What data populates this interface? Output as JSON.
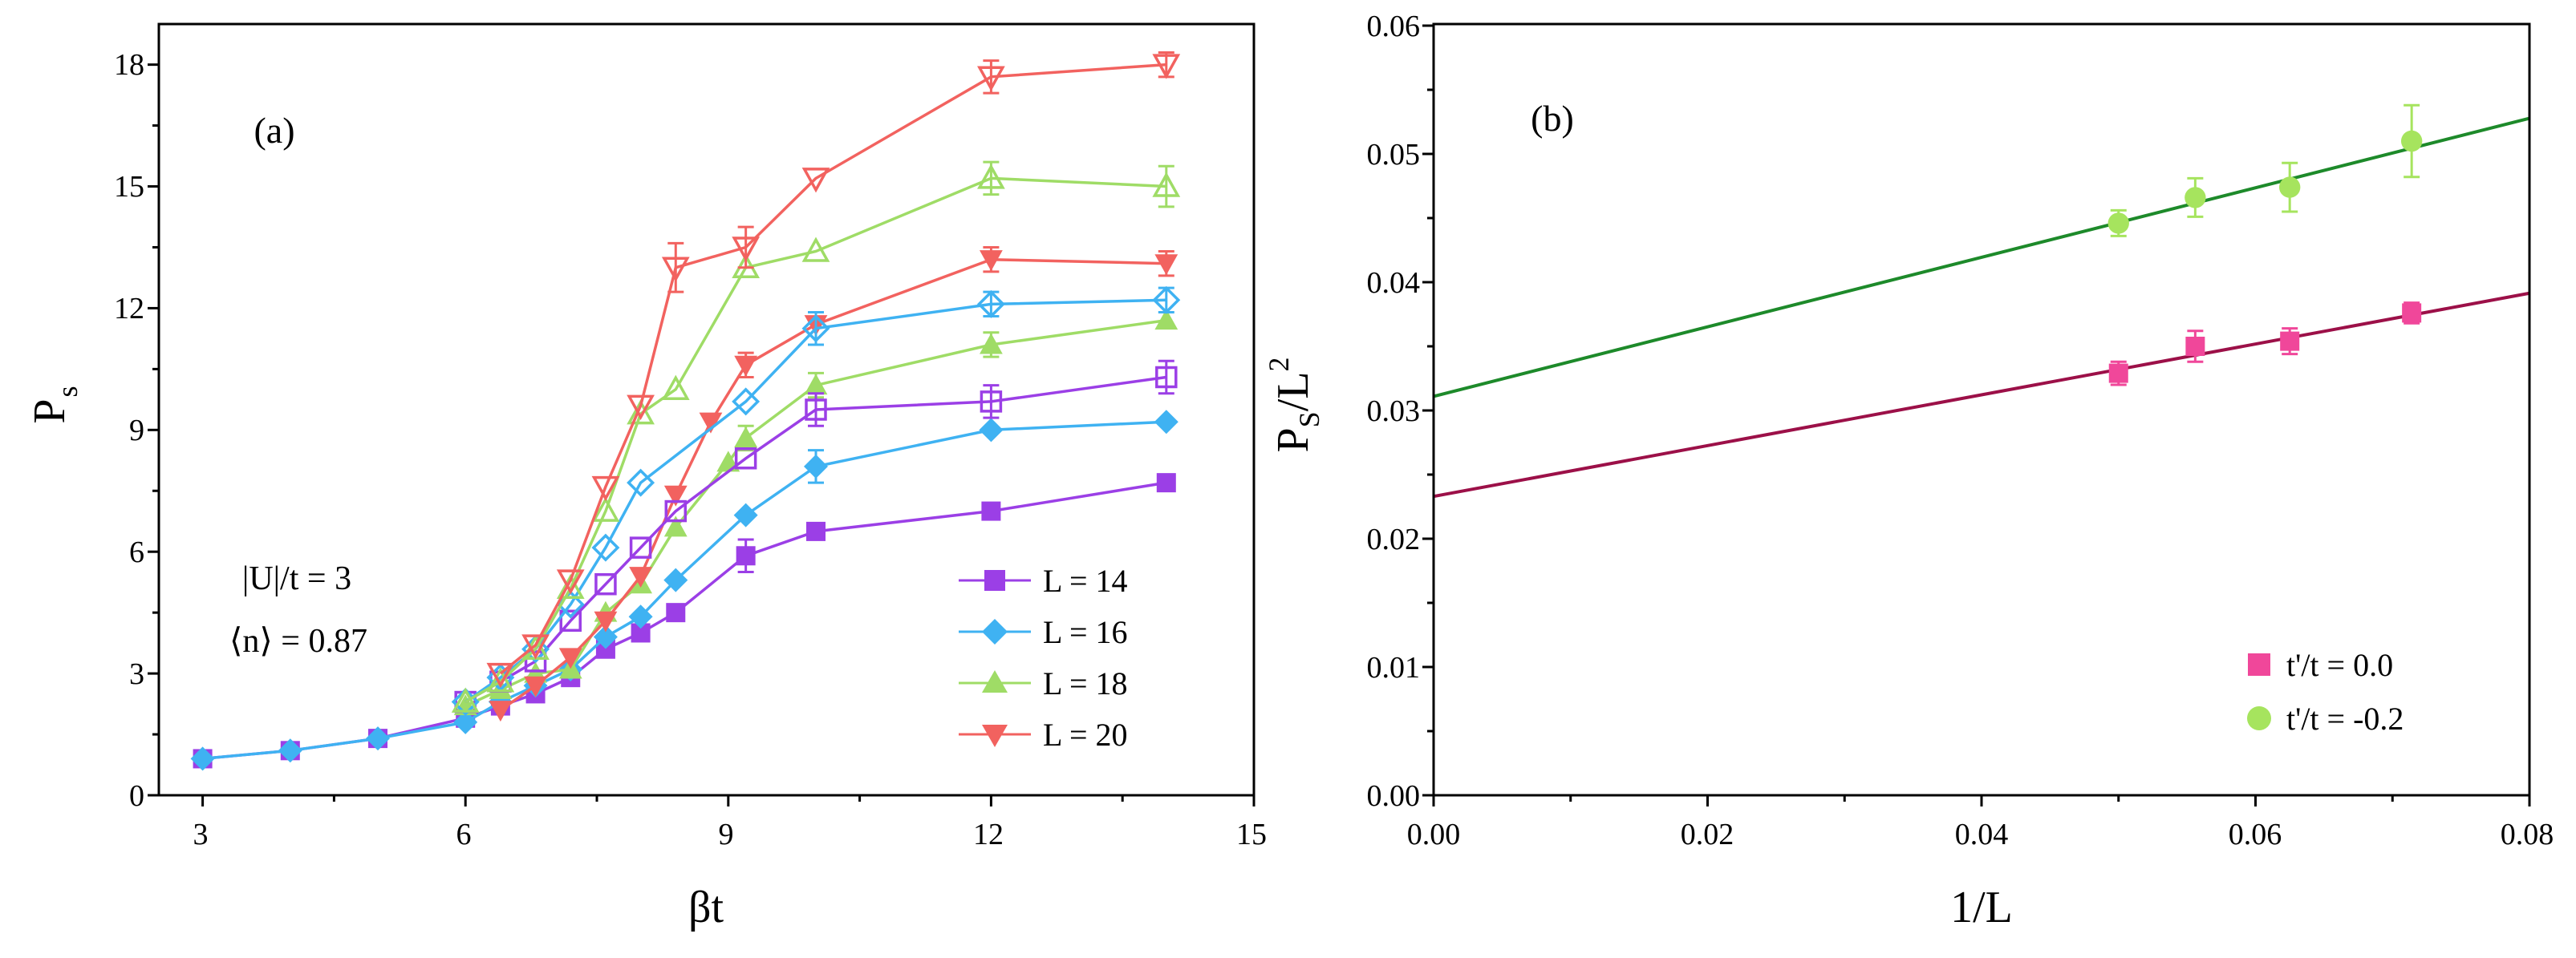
{
  "chart_data": [
    {
      "panel": "a",
      "type": "line",
      "panel_label": "(a)",
      "xlabel": "βt",
      "ylabel_main": "P",
      "ylabel_sub": "s",
      "xlim": [
        2.5,
        15
      ],
      "ylim": [
        0,
        19
      ],
      "xticks": [
        3,
        6,
        9,
        12,
        15
      ],
      "yticks": [
        0,
        3,
        6,
        9,
        12,
        15,
        18
      ],
      "annotations": [
        "|U|/t = 3",
        "⟨n⟩ = 0.87"
      ],
      "legend_position": "bottom-right",
      "series": [
        {
          "name": "L = 14",
          "color": "#9b3fe6",
          "marker": "square",
          "x": [
            3,
            4,
            5,
            6,
            6.4,
            6.8,
            7.2,
            7.6,
            8,
            8.4,
            9.2,
            10,
            12,
            14
          ],
          "y": [
            0.9,
            1.1,
            1.4,
            1.9,
            2.2,
            2.5,
            2.9,
            3.6,
            4.0,
            4.5,
            5.9,
            6.5,
            7.0,
            7.7
          ],
          "err": [
            0,
            0,
            0,
            0,
            0,
            0,
            0,
            0,
            0,
            0,
            0.4,
            0,
            0,
            0
          ]
        },
        {
          "name": "L = 16",
          "color": "#3fb2f2",
          "marker": "diamond",
          "x": [
            3,
            4,
            5,
            6,
            6.4,
            6.8,
            7.2,
            7.6,
            8,
            8.4,
            9.2,
            10,
            12,
            14
          ],
          "y": [
            0.9,
            1.1,
            1.4,
            1.8,
            2.3,
            2.7,
            3.1,
            3.9,
            4.4,
            5.3,
            6.9,
            8.1,
            9.0,
            9.2
          ],
          "err": [
            0,
            0,
            0,
            0,
            0,
            0,
            0,
            0,
            0,
            0,
            0,
            0.4,
            0,
            0
          ]
        },
        {
          "name": "L = 18",
          "color": "#9fdc66",
          "marker": "triangle-up",
          "x": [
            6,
            6.4,
            6.8,
            7.2,
            7.6,
            8,
            8.4,
            9,
            9.2,
            10,
            12,
            14
          ],
          "y": [
            2.2,
            2.6,
            3.0,
            3.1,
            4.5,
            5.2,
            6.6,
            8.2,
            8.8,
            10.1,
            11.1,
            11.7
          ],
          "err": [
            0,
            0,
            0,
            0,
            0,
            0,
            0,
            0,
            0.3,
            0.3,
            0.3,
            0
          ]
        },
        {
          "name": "L = 20",
          "color": "#f2625f",
          "marker": "triangle-down",
          "x": [
            6.4,
            6.8,
            7.2,
            7.6,
            8,
            8.4,
            8.8,
            9.2,
            10,
            12,
            14
          ],
          "y": [
            2.1,
            2.7,
            3.4,
            4.3,
            5.4,
            7.4,
            9.2,
            10.6,
            11.6,
            13.2,
            13.1
          ],
          "err": [
            0,
            0,
            0,
            0,
            0,
            0,
            0,
            0.3,
            0,
            0.3,
            0.3
          ]
        },
        {
          "name": "L = 14 (hollow)",
          "color": "#9b3fe6",
          "marker": "square-open",
          "x": [
            6,
            6.4,
            6.8,
            7.2,
            7.6,
            8,
            8.4,
            9.2,
            10,
            12,
            14
          ],
          "y": [
            2.3,
            2.8,
            3.3,
            4.3,
            5.2,
            6.1,
            7.0,
            8.3,
            9.5,
            9.7,
            10.3
          ],
          "err": [
            0,
            0,
            0,
            0,
            0,
            0,
            0,
            0,
            0.4,
            0.4,
            0.4
          ]
        },
        {
          "name": "L = 16 (hollow)",
          "color": "#3fb2f2",
          "marker": "diamond-open",
          "x": [
            6,
            6.4,
            6.8,
            7.2,
            7.6,
            8,
            9.2,
            10,
            12,
            14
          ],
          "y": [
            2.3,
            2.9,
            3.6,
            4.7,
            6.1,
            7.7,
            9.7,
            11.5,
            12.1,
            12.2
          ],
          "err": [
            0,
            0,
            0,
            0,
            0,
            0,
            0,
            0.4,
            0.3,
            0.3
          ]
        },
        {
          "name": "L = 18 (hollow)",
          "color": "#9fdc66",
          "marker": "triangle-up-open",
          "x": [
            6,
            6.4,
            6.8,
            7.2,
            7.6,
            8,
            8.4,
            9.2,
            10,
            12,
            14
          ],
          "y": [
            2.3,
            2.8,
            3.6,
            5.1,
            7.0,
            9.4,
            10.0,
            13.0,
            13.4,
            15.2,
            15.0
          ],
          "err": [
            0,
            0,
            0,
            0,
            0,
            0,
            0,
            0,
            0,
            0.4,
            0.5
          ]
        },
        {
          "name": "L = 20 (hollow)",
          "color": "#f2625f",
          "marker": "triangle-down-open",
          "x": [
            6.4,
            6.8,
            7.2,
            7.6,
            8,
            8.4,
            9.2,
            10,
            12,
            14
          ],
          "y": [
            3.0,
            3.7,
            5.3,
            7.6,
            9.6,
            13.0,
            13.5,
            15.2,
            17.7,
            18.0
          ],
          "err": [
            0,
            0,
            0,
            0,
            0,
            0.6,
            0.5,
            0,
            0.4,
            0.3
          ]
        }
      ],
      "legend": [
        {
          "label": "L = 14",
          "color": "#9b3fe6",
          "marker": "square"
        },
        {
          "label": "L = 16",
          "color": "#3fb2f2",
          "marker": "diamond"
        },
        {
          "label": "L = 18",
          "color": "#9fdc66",
          "marker": "triangle-up"
        },
        {
          "label": "L = 20",
          "color": "#f2625f",
          "marker": "triangle-down"
        }
      ]
    },
    {
      "panel": "b",
      "type": "scatter",
      "panel_label": "(b)",
      "xlabel": "1/L",
      "ylabel_main": "P",
      "ylabel_sub": "S",
      "ylabel_tail": "/L",
      "ylabel_sup": "2",
      "xlim": [
        0,
        0.08
      ],
      "ylim": [
        0,
        0.06
      ],
      "xticks": [
        "0.00",
        "0.02",
        "0.04",
        "0.06",
        "0.08"
      ],
      "yticks": [
        "0.00",
        "0.01",
        "0.02",
        "0.03",
        "0.04",
        "0.05",
        "0.06"
      ],
      "legend_position": "bottom-right",
      "series": [
        {
          "name": "t'/t = 0.0",
          "color": "#f0479a",
          "marker": "square",
          "x": [
            0.05,
            0.0556,
            0.0625,
            0.0714
          ],
          "y": [
            0.0329,
            0.035,
            0.0354,
            0.0376
          ],
          "err": [
            0.0009,
            0.0012,
            0.001,
            0.0008
          ],
          "fit": {
            "intercept": 0.0233,
            "slope": 0.198,
            "color": "#9c1048"
          }
        },
        {
          "name": "t'/t = -0.2",
          "color": "#a6e45e",
          "marker": "circle",
          "x": [
            0.05,
            0.0556,
            0.0625,
            0.0714
          ],
          "y": [
            0.0446,
            0.0466,
            0.0474,
            0.051
          ],
          "err": [
            0.001,
            0.0015,
            0.0019,
            0.0028
          ],
          "fit": {
            "intercept": 0.0311,
            "slope": 0.271,
            "color": "#1d8a2a"
          }
        }
      ],
      "legend": [
        {
          "label": "t'/t = 0.0",
          "color": "#f0479a",
          "marker": "square"
        },
        {
          "label": "t'/t = -0.2",
          "color": "#a6e45e",
          "marker": "circle"
        }
      ]
    }
  ]
}
